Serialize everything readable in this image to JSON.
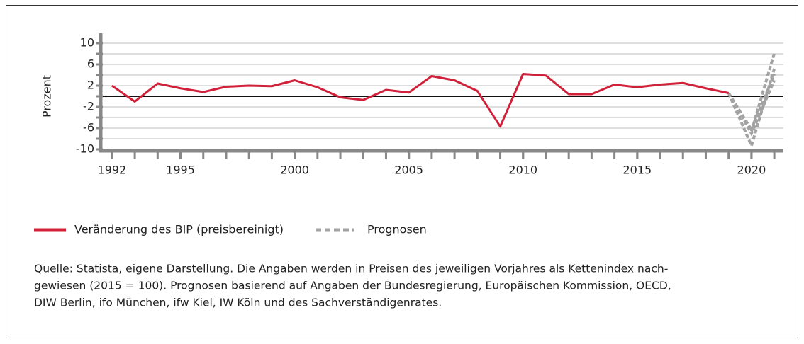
{
  "chart_data": {
    "type": "line",
    "y_label": "Prozent",
    "x": [
      1992,
      1993,
      1994,
      1995,
      1996,
      1997,
      1998,
      1999,
      2000,
      2001,
      2002,
      2003,
      2004,
      2005,
      2006,
      2007,
      2008,
      2009,
      2010,
      2011,
      2012,
      2013,
      2014,
      2015,
      2016,
      2017,
      2018,
      2019
    ],
    "series": [
      {
        "name": "Veränderung des BIP (preisbereinigt)",
        "color": "#d0203a",
        "values": [
          2.0,
          -1.0,
          2.4,
          1.5,
          0.8,
          1.8,
          2.0,
          1.9,
          3.0,
          1.7,
          -0.2,
          -0.7,
          1.2,
          0.7,
          3.8,
          3.0,
          1.0,
          -5.7,
          4.2,
          3.9,
          0.4,
          0.4,
          2.2,
          1.7,
          2.2,
          2.5,
          1.5,
          0.6
        ]
      }
    ],
    "forecasts": {
      "name": "Prognosen",
      "color": "#a3a3a3",
      "x": [
        2019,
        2020,
        2021
      ],
      "lines": [
        [
          0.6,
          -9.3,
          5.2
        ],
        [
          0.6,
          -6.6,
          8.1
        ],
        [
          0.6,
          -6.3,
          4.2
        ],
        [
          0.6,
          -7.0,
          3.0
        ]
      ]
    },
    "xlim": [
      1991.6,
      2021.4
    ],
    "xticks": [
      1992,
      1995,
      2000,
      2005,
      2010,
      2015,
      2020
    ],
    "ylim": [
      -10,
      10
    ],
    "yticks": [
      10,
      6,
      2,
      -2,
      -6,
      -10
    ],
    "ygrid": [
      10,
      8,
      6,
      4,
      2,
      0,
      -2,
      -4,
      -6,
      -8,
      -10
    ],
    "grid": true,
    "source": [
      "Quelle: Statista, eigene Darstellung. Die Angaben werden in Preisen des jeweiligen Vorjahres als Kettenindex nach-",
      "gewiesen (2015 = 100). Prognosen basierend auf Angaben der Bundesregierung, Europäischen Kommission, OECD,",
      "DIW Berlin, ifo München, ifw Kiel, IW Köln und des Sachverständigenrates."
    ]
  }
}
